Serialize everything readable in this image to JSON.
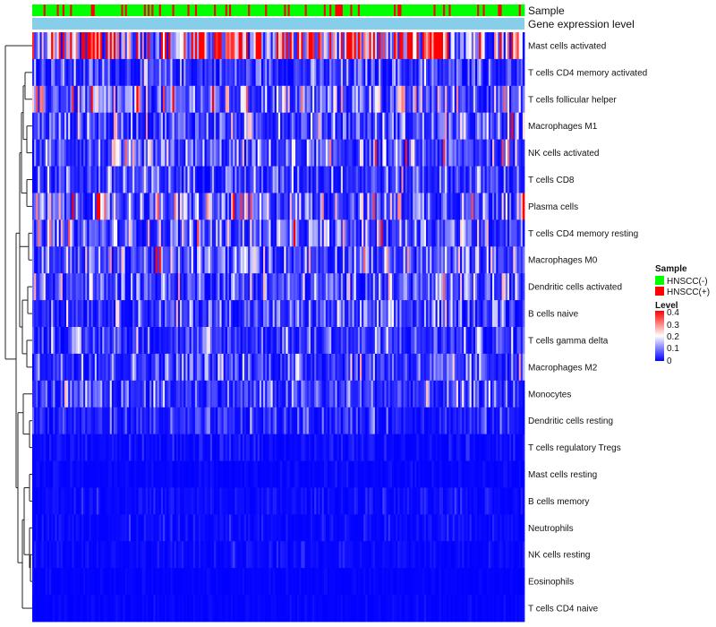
{
  "chart_data": {
    "type": "heatmap",
    "title": "",
    "annotation_tracks": [
      "Sample",
      "Gene expression level"
    ],
    "sample_groups": [
      "HNSCC(-)",
      "HNSCC(+)"
    ],
    "rows": [
      {
        "name": "Mast cells activated",
        "mean": 0.26
      },
      {
        "name": "T cells CD4 memory activated",
        "mean": 0.05
      },
      {
        "name": "T cells follicular helper",
        "mean": 0.09
      },
      {
        "name": "Macrophages M1",
        "mean": 0.07
      },
      {
        "name": "NK cells activated",
        "mean": 0.07
      },
      {
        "name": "T cells CD8",
        "mean": 0.06
      },
      {
        "name": "Plasma cells",
        "mean": 0.1
      },
      {
        "name": "T cells CD4 memory resting",
        "mean": 0.08
      },
      {
        "name": "Macrophages M0",
        "mean": 0.08
      },
      {
        "name": "Dendritic cells activated",
        "mean": 0.07
      },
      {
        "name": "B cells naive",
        "mean": 0.06
      },
      {
        "name": "T cells gamma delta",
        "mean": 0.05
      },
      {
        "name": "Macrophages M2",
        "mean": 0.06
      },
      {
        "name": "Monocytes",
        "mean": 0.05
      },
      {
        "name": "Dendritic cells resting",
        "mean": 0.03
      },
      {
        "name": "T cells regulatory  Tregs",
        "mean": 0.01
      },
      {
        "name": "Mast cells resting",
        "mean": 0.005
      },
      {
        "name": "B cells memory",
        "mean": 0.01
      },
      {
        "name": "Neutrophils",
        "mean": 0.01
      },
      {
        "name": "NK cells resting",
        "mean": 0.008
      },
      {
        "name": "Eosinophils",
        "mean": 0.003
      },
      {
        "name": "T cells CD4 naive",
        "mean": 0.004
      }
    ],
    "n_samples": 260,
    "color_scale": {
      "min": 0,
      "max": 0.4,
      "ticks": [
        "0.4",
        "0.3",
        "0.2",
        "0.1",
        "0"
      ],
      "low": "#0000ff",
      "mid": "#ffffff",
      "high": "#ff0000"
    },
    "legend": {
      "sample_title": "Sample",
      "sample_entries": [
        {
          "label": "HNSCC(-)",
          "color": "#00ff00"
        },
        {
          "label": "HNSCC(+)",
          "color": "#ff0000"
        }
      ],
      "level_title": "Level",
      "position": "right"
    },
    "expression_track_color": "#87ceeb"
  }
}
